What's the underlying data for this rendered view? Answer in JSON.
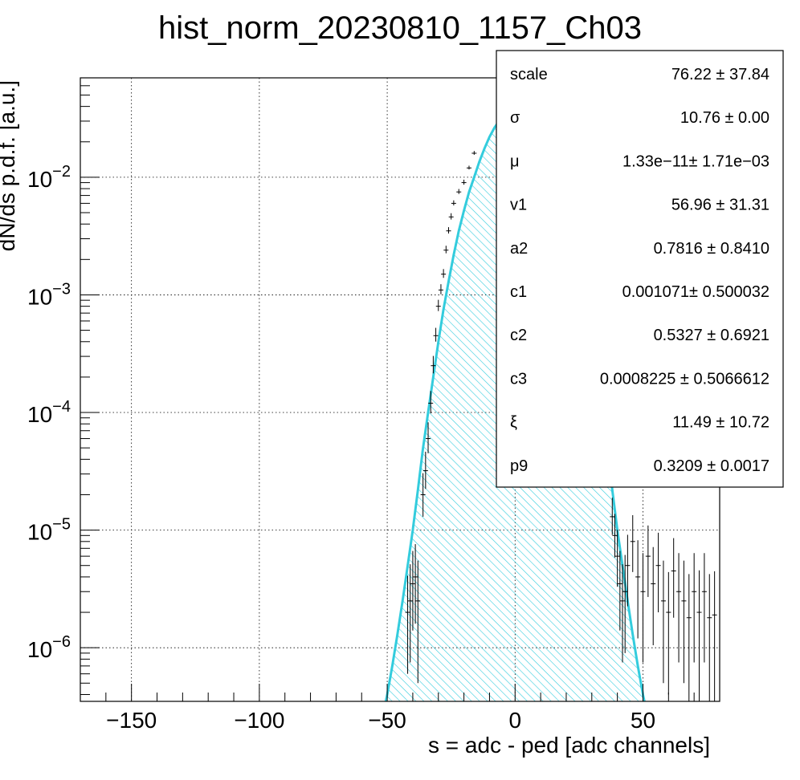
{
  "chart_data": {
    "type": "line",
    "title": "hist_norm_20230810_1157_Ch03",
    "xlabel": "s = adc - ped [adc channels]",
    "ylabel": "dN/ds p.d.f. [a.u.]",
    "xlim": [
      -170,
      80
    ],
    "ylim": [
      3.5e-07,
      0.07
    ],
    "y_scale": "log",
    "grid": true,
    "x_ticks": [
      -150,
      -100,
      -50,
      0,
      50
    ],
    "x_tick_labels": [
      "−150",
      "−100",
      "−50",
      "0",
      "50"
    ],
    "y_ticks": [
      {
        "value": 1e-06,
        "base": "10",
        "exp": "−6"
      },
      {
        "value": 1e-05,
        "base": "10",
        "exp": "−5"
      },
      {
        "value": 0.0001,
        "base": "10",
        "exp": "−4"
      },
      {
        "value": 0.001,
        "base": "10",
        "exp": "−3"
      },
      {
        "value": 0.01,
        "base": "10",
        "exp": "−2"
      }
    ],
    "fit": {
      "color": "#33ccdd",
      "fill_pattern": "diagonal-hatch",
      "peak": 0.036,
      "x": [
        -52,
        -50,
        -48,
        -46,
        -44,
        -42,
        -40,
        -38,
        -36,
        -34,
        -32,
        -30,
        -28,
        -26,
        -24,
        -22,
        -20,
        -18,
        -16,
        -14,
        -12,
        -10,
        -8,
        -6,
        -4,
        -2,
        0,
        2,
        4,
        6,
        8,
        10,
        12,
        14,
        16,
        18,
        20,
        22,
        24,
        26,
        28,
        30,
        32,
        34,
        36,
        38,
        40,
        42,
        44,
        46,
        48,
        50,
        52
      ],
      "y": [
        2.5e-07,
        4e-07,
        7e-07,
        1.3e-06,
        2.5e-06,
        5e-06,
        1e-05,
        2.2e-05,
        5e-05,
        0.0001,
        0.0002,
        0.0004,
        0.00075,
        0.0013,
        0.0022,
        0.0035,
        0.0052,
        0.0075,
        0.01,
        0.0135,
        0.0175,
        0.022,
        0.0265,
        0.0305,
        0.0335,
        0.0355,
        0.036,
        0.0355,
        0.0335,
        0.0305,
        0.0265,
        0.022,
        0.0175,
        0.0135,
        0.01,
        0.0075,
        0.0052,
        0.0035,
        0.0022,
        0.0013,
        0.00075,
        0.0004,
        0.0002,
        0.0001,
        5e-05,
        2.2e-05,
        1e-05,
        5e-06,
        2.5e-06,
        1.3e-06,
        7e-07,
        4e-07,
        2.5e-07
      ]
    },
    "data_points": {
      "color": "#000000",
      "x": [
        -42,
        -41,
        -40,
        -39,
        -38,
        -36,
        -35,
        -34,
        -33,
        -32,
        -31,
        -30,
        -29,
        -28,
        -27,
        -26,
        -25,
        -24,
        -22,
        -20,
        -18,
        -16,
        38,
        39,
        40,
        41,
        42,
        43,
        44,
        46,
        48,
        50,
        52,
        54,
        56,
        58,
        60,
        62,
        64,
        66,
        68,
        70,
        72,
        74,
        76,
        78
      ],
      "y": [
        2e-06,
        2.5e-06,
        3.5e-06,
        4e-06,
        2.5e-06,
        2e-05,
        3.2e-05,
        6e-05,
        0.00012,
        0.00025,
        0.00045,
        0.0008,
        0.0011,
        0.0015,
        0.0024,
        0.0035,
        0.0046,
        0.006,
        0.0075,
        0.009,
        0.012,
        0.016,
        1.3e-05,
        9e-06,
        6e-06,
        3.5e-06,
        2.5e-06,
        3e-06,
        5e-06,
        8e-06,
        4e-06,
        3e-06,
        6e-06,
        3.5e-06,
        5e-06,
        2.5e-06,
        2e-06,
        4.5e-06,
        3e-06,
        2.5e-06,
        1.8e-06,
        3e-06,
        2e-06,
        3e-06,
        1.8e-06,
        1.9e-06
      ],
      "rel_err": [
        0.7,
        0.7,
        0.6,
        0.6,
        0.8,
        0.35,
        0.3,
        0.25,
        0.18,
        0.14,
        0.11,
        0.09,
        0.08,
        0.07,
        0.06,
        0.05,
        0.05,
        0.04,
        0.04,
        0.04,
        0.03,
        0.03,
        0.3,
        0.35,
        0.45,
        0.6,
        0.7,
        0.7,
        0.55,
        0.45,
        0.7,
        0.75,
        0.55,
        0.7,
        0.6,
        0.8,
        0.8,
        0.6,
        0.75,
        0.8,
        0.9,
        0.75,
        0.85,
        0.75,
        0.9,
        0.9
      ]
    },
    "stats_box": {
      "rows": [
        {
          "name": "scale",
          "value": "76.22 ± 37.84"
        },
        {
          "name": "σ",
          "value": "10.76 ± 0.00"
        },
        {
          "name": "μ",
          "value": "1.33e−11± 1.71e−03"
        },
        {
          "name": "v1",
          "value": "56.96 ± 31.31"
        },
        {
          "name": "a2",
          "value": "0.7816 ± 0.8410"
        },
        {
          "name": "c1",
          "value": "0.001071± 0.500032"
        },
        {
          "name": "c2",
          "value": "0.5327 ± 0.6921"
        },
        {
          "name": "c3",
          "value": "0.0008225 ± 0.5066612"
        },
        {
          "name": "ξ",
          "value": "11.49 ± 10.72"
        },
        {
          "name": "p9",
          "value": "0.3209 ± 0.0017"
        }
      ]
    }
  }
}
